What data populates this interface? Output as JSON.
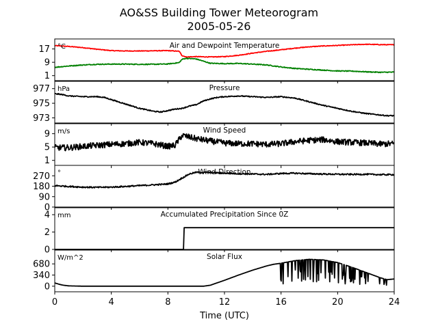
{
  "figure": {
    "title_line1": "AO&SS Building Tower Meteorogram",
    "title_line2": "2005-05-26",
    "xlabel": "Time (UTC)",
    "xlim": [
      0,
      24
    ],
    "xticks": [
      0,
      4,
      8,
      12,
      16,
      20,
      24
    ],
    "xtick_labels": [
      "0",
      "4",
      "8",
      "12",
      "16",
      "20",
      "24"
    ]
  },
  "chart_data": [
    {
      "type": "line",
      "title": "Air and Dewpoint Temperature",
      "unit": "°C",
      "ylim": [
        -2,
        23
      ],
      "yticks": [
        1,
        9,
        17
      ],
      "ytick_labels": [
        "1",
        "9",
        "17"
      ],
      "series": [
        {
          "color": "#ff0000",
          "x": [
            0,
            1,
            2,
            3,
            4,
            5,
            6,
            7,
            8,
            8.8,
            9.0,
            9.3,
            10,
            11,
            12,
            13,
            14,
            15,
            16,
            17,
            18,
            19,
            20,
            21,
            22,
            23,
            24
          ],
          "y": [
            19.0,
            18.5,
            17.8,
            16.8,
            16.0,
            15.8,
            15.8,
            15.9,
            16.0,
            15.6,
            13.0,
            12.2,
            12.4,
            12.2,
            12.4,
            13.2,
            14.5,
            15.6,
            16.5,
            17.5,
            18.3,
            18.8,
            19.1,
            19.5,
            19.8,
            19.6,
            19.5
          ],
          "noise": 0.2
        },
        {
          "color": "#008000",
          "x": [
            0,
            1,
            2,
            3,
            4,
            5,
            6,
            7,
            8,
            8.8,
            9.0,
            9.3,
            10,
            11,
            12,
            13,
            14,
            15,
            16,
            17,
            18,
            19,
            20,
            21,
            22,
            23,
            24
          ],
          "y": [
            6.0,
            6.8,
            7.4,
            7.8,
            7.9,
            7.9,
            7.8,
            7.8,
            8.0,
            8.8,
            10.8,
            11.4,
            11.0,
            8.4,
            8.2,
            8.3,
            7.9,
            7.4,
            6.2,
            5.3,
            4.8,
            4.3,
            3.8,
            3.7,
            3.3,
            3.0,
            3.1
          ],
          "noise": 0.25
        }
      ]
    },
    {
      "type": "line",
      "title": "Pressure",
      "unit": "hPa",
      "ylim": [
        972.3,
        978.0
      ],
      "yticks": [
        973,
        975,
        977
      ],
      "ytick_labels": [
        "973",
        "975",
        "977"
      ],
      "series": [
        {
          "color": "#000000",
          "x": [
            0,
            0.5,
            1,
            2,
            3,
            3.5,
            4,
            5,
            6,
            7,
            7.5,
            8,
            8.5,
            9,
            9.5,
            10,
            10.5,
            11,
            11.5,
            12,
            13,
            14,
            15,
            16,
            17,
            18,
            19,
            20,
            21,
            22,
            23,
            23.5,
            24
          ],
          "y": [
            976.3,
            976.2,
            976.0,
            975.9,
            975.9,
            975.8,
            975.5,
            974.9,
            974.3,
            973.9,
            973.8,
            974.0,
            974.2,
            974.3,
            974.6,
            974.8,
            975.3,
            975.6,
            975.8,
            975.9,
            976.0,
            975.9,
            975.8,
            975.9,
            975.7,
            975.2,
            974.7,
            974.3,
            973.9,
            973.6,
            973.4,
            973.3,
            973.3
          ],
          "noise": 0.07
        }
      ]
    },
    {
      "type": "line",
      "title": "Wind Speed",
      "unit": "m/s",
      "ylim": [
        -0.5,
        12
      ],
      "yticks": [
        1,
        5,
        9
      ],
      "ytick_labels": [
        "1",
        "5",
        "9"
      ],
      "series": [
        {
          "color": "#000000",
          "x": [
            0,
            1,
            2,
            3,
            4,
            5,
            6,
            7,
            8,
            8.5,
            9,
            10,
            11,
            12,
            13,
            14,
            15,
            16,
            17,
            18,
            19,
            20,
            21,
            22,
            23,
            24
          ],
          "y": [
            4.8,
            4.8,
            5.2,
            5.5,
            5.8,
            6.0,
            6.4,
            6.0,
            5.2,
            5.5,
            8.5,
            7.5,
            6.8,
            6.2,
            6.0,
            6.0,
            5.8,
            6.0,
            6.6,
            7.0,
            7.2,
            6.6,
            6.4,
            6.2,
            5.9,
            6.0
          ],
          "noise": 0.9
        }
      ]
    },
    {
      "type": "line",
      "title": "Wind Direction",
      "unit": "°",
      "ylim": [
        0,
        360
      ],
      "yticks": [
        0,
        90,
        180,
        270
      ],
      "ytick_labels": [
        "0",
        "90",
        "180",
        "270"
      ],
      "series": [
        {
          "color": "#000000",
          "x": [
            0,
            1,
            2,
            3,
            4,
            5,
            6,
            7,
            7.5,
            8,
            8.5,
            9,
            9.5,
            10,
            11,
            12,
            13,
            14,
            15,
            16,
            17,
            18,
            19,
            20,
            21,
            22,
            23,
            24
          ],
          "y": [
            185,
            178,
            172,
            170,
            172,
            178,
            185,
            192,
            195,
            200,
            215,
            250,
            285,
            300,
            298,
            293,
            288,
            285,
            282,
            290,
            292,
            288,
            285,
            283,
            282,
            283,
            280,
            280
          ],
          "noise": 6
        }
      ]
    },
    {
      "type": "line",
      "title": "Accumulated Precipitation Since 0Z",
      "unit": "mm",
      "ylim": [
        0,
        4.8
      ],
      "yticks": [
        0,
        2,
        4
      ],
      "ytick_labels": [
        "0",
        "2",
        "4"
      ],
      "series": [
        {
          "color": "#000000",
          "x": [
            0,
            9.1,
            9.15,
            24
          ],
          "y": [
            0,
            0,
            2.5,
            2.5
          ],
          "noise": 0
        }
      ]
    },
    {
      "type": "line",
      "title": "Solar Flux",
      "unit": "W/m^2",
      "ylim": [
        -170,
        1100
      ],
      "yticks": [
        0,
        340,
        680
      ],
      "ytick_labels": [
        "0",
        "340",
        "680"
      ],
      "series": [
        {
          "color": "#000000",
          "x": [
            0,
            0.3,
            0.6,
            1,
            2,
            4,
            6,
            8,
            9,
            10,
            10.5,
            11,
            12,
            13,
            14,
            15,
            15.5,
            16,
            17,
            18,
            19,
            20,
            21,
            22,
            23,
            23.5,
            24
          ],
          "y": [
            100,
            60,
            30,
            10,
            0,
            0,
            0,
            0,
            0,
            0,
            0,
            30,
            180,
            340,
            490,
            620,
            670,
            700,
            780,
            820,
            800,
            720,
            580,
            420,
            260,
            200,
            220
          ],
          "noise": 0,
          "dips_from_hour": 15.8,
          "dips_to_hour": 23.5
        }
      ]
    }
  ]
}
